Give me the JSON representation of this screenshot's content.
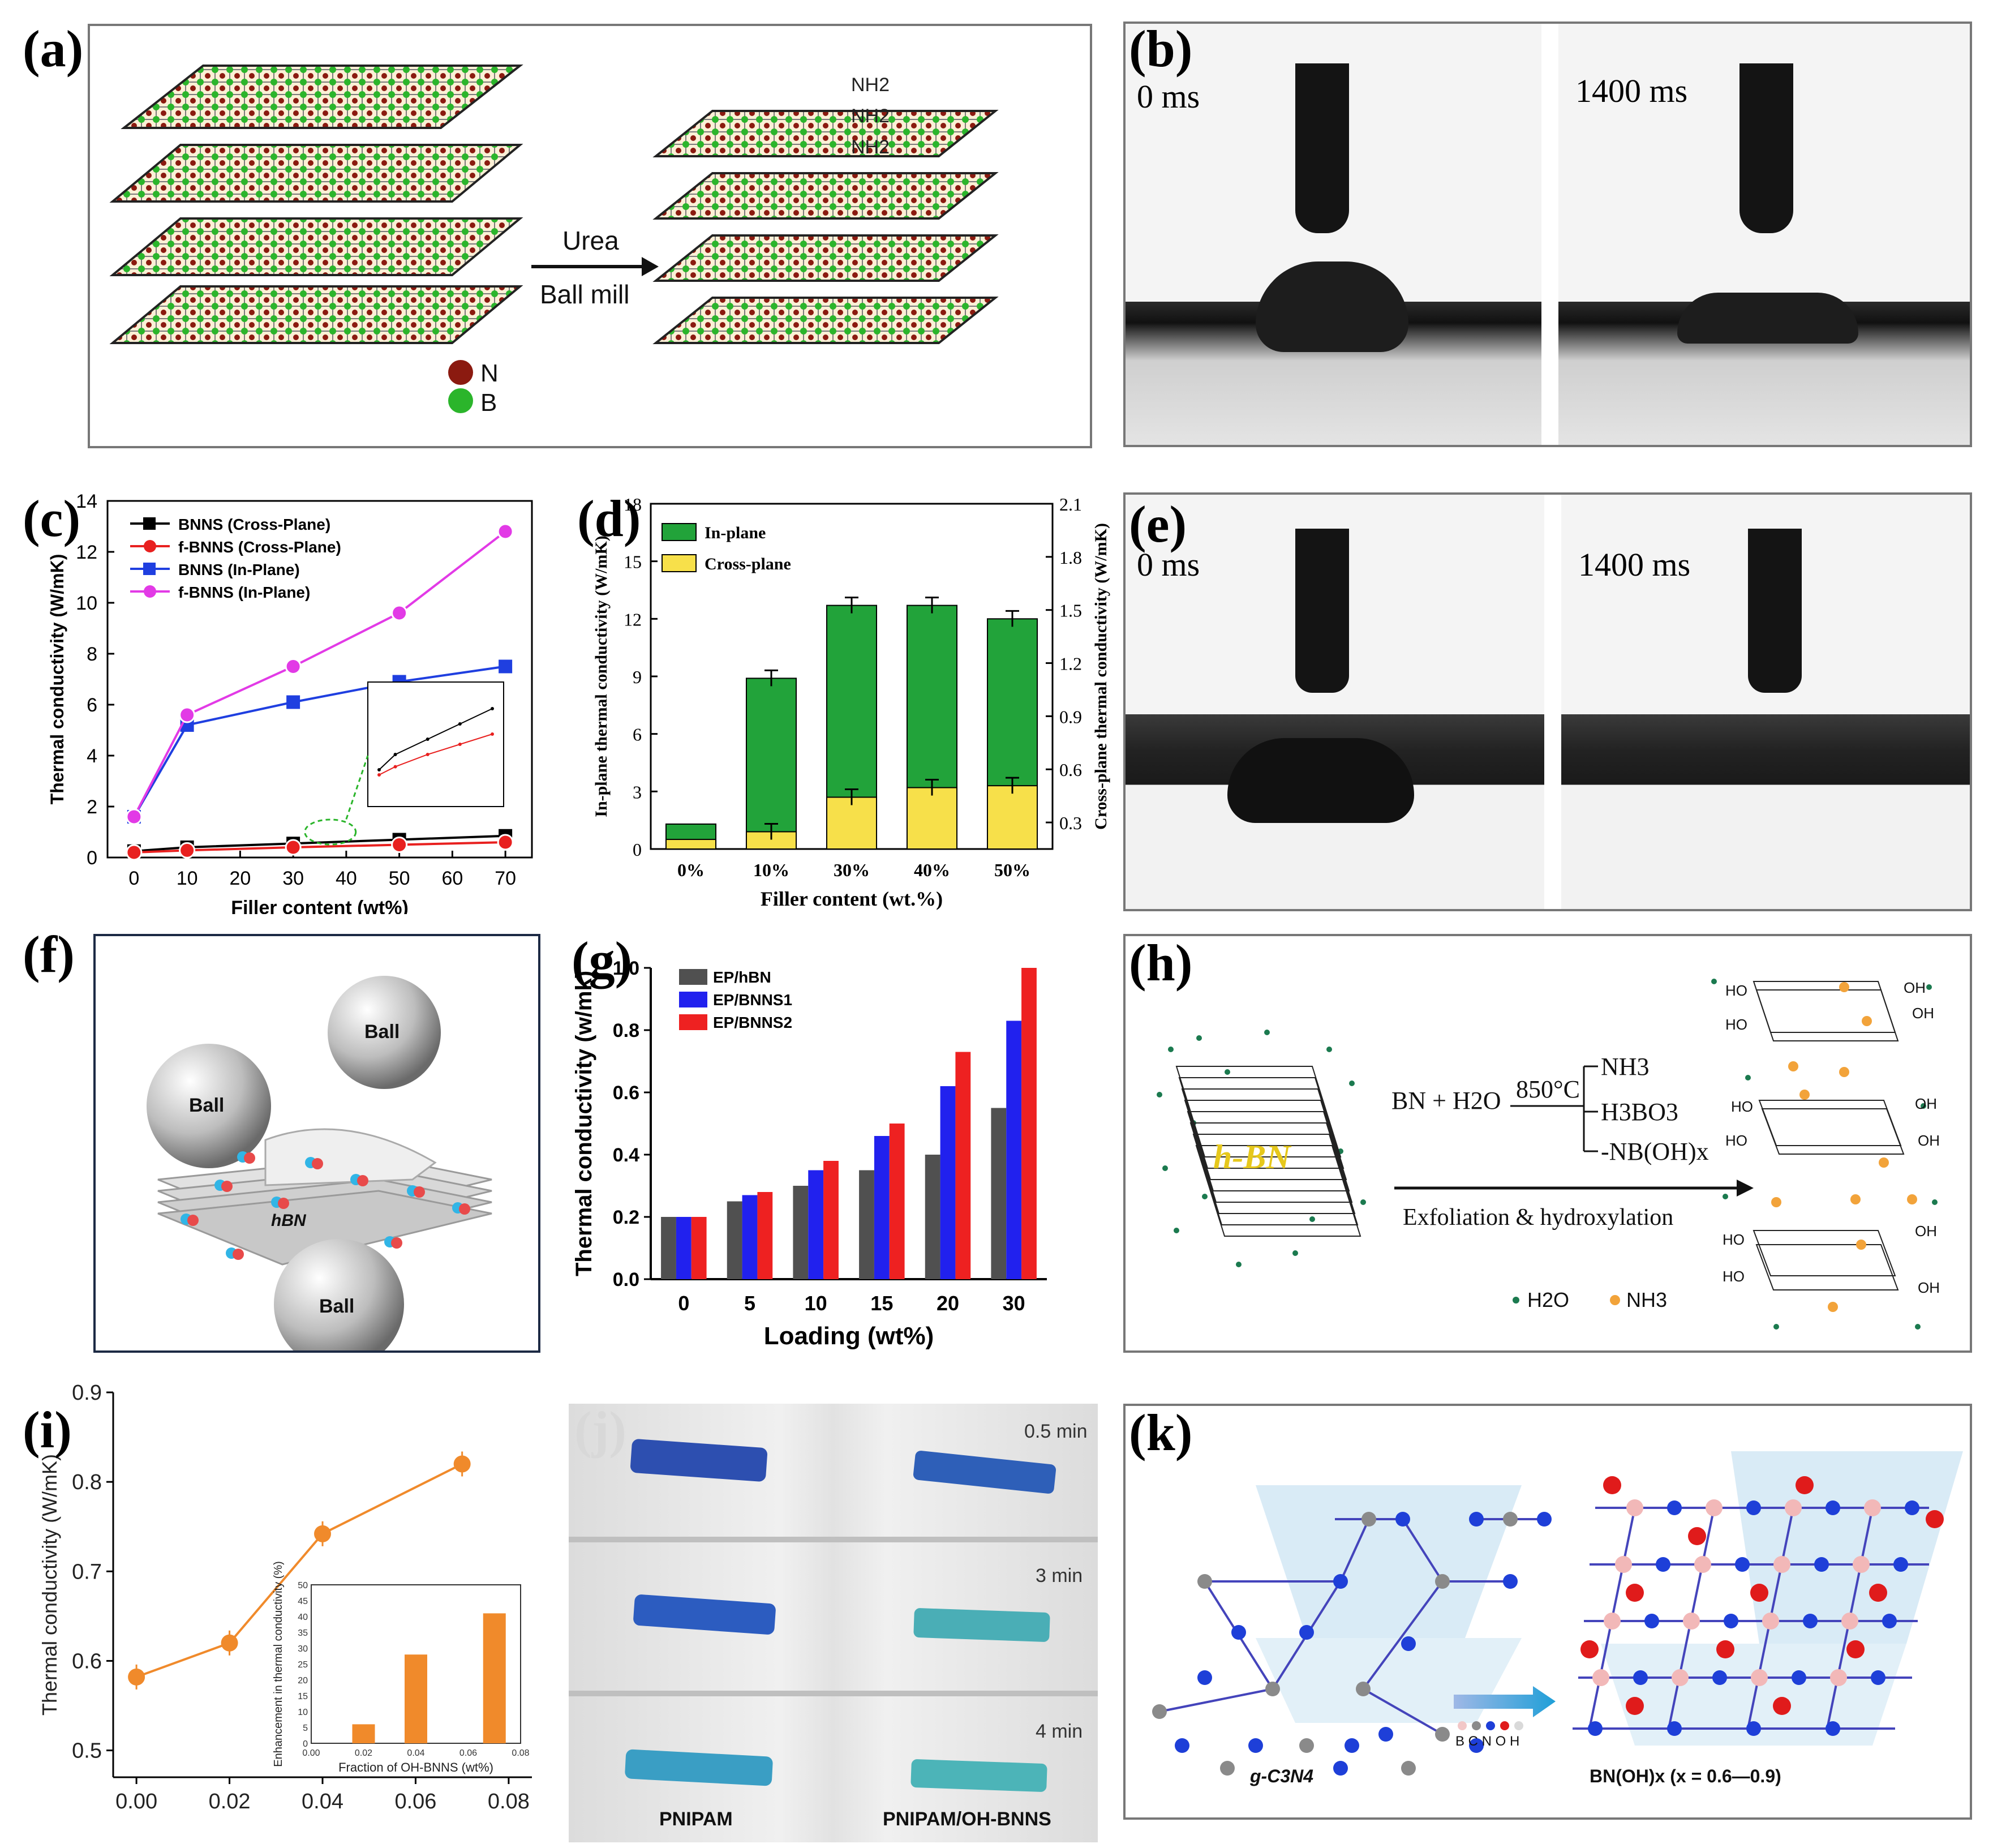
{
  "panels": {
    "a": {
      "label": "(a)",
      "arrow_top": "Urea",
      "arrow_bottom": "Ball mill",
      "legend": [
        {
          "symbol": "N",
          "color": "#8b1a10"
        },
        {
          "symbol": "B",
          "color": "#2bb52b"
        }
      ],
      "group": "NH2",
      "group_sub": "2"
    },
    "b": {
      "label": "(b)",
      "t0": "0 ms",
      "t1": "1400 ms"
    },
    "c": {
      "label": "(c)"
    },
    "d": {
      "label": "(d)"
    },
    "e": {
      "label": "(e)",
      "t0": "0 ms",
      "t1": "1400 ms"
    },
    "f": {
      "label": "(f)",
      "balls": [
        "Ball",
        "Ball",
        "Ball"
      ],
      "sheet": "hBN"
    },
    "g": {
      "label": "(g)"
    },
    "h": {
      "label": "(h)",
      "reactants": "BN + H2O",
      "temperature": "850°C",
      "products": [
        "NH3",
        "H3BO3",
        "-NB(OH)x"
      ],
      "arrow": "Exfoliation & hydroxylation",
      "crystal": "h-BN",
      "legend_water": "H2O",
      "legend_ammonia": "NH3",
      "oh": "OH",
      "ho": "HO"
    },
    "i": {
      "label": "(i)"
    },
    "j": {
      "label": "(j)",
      "times": [
        "0.5 min",
        "3 min",
        "4 min"
      ],
      "left": "PNIPAM",
      "right": "PNIPAM/OH-BNNS"
    },
    "k": {
      "label": "(k)",
      "left": "g-C3N4",
      "right": "BN(OH)x (x = 0.6—0.9)",
      "elements": "B C N O H"
    }
  },
  "chart_data": [
    {
      "id": "c",
      "type": "line",
      "title": "",
      "xlabel": "Filler content (wt%)",
      "ylabel": "Thermal conductivity (W/mK)",
      "x": [
        0,
        10,
        30,
        50,
        70
      ],
      "xlim": [
        -5,
        75
      ],
      "ylim": [
        0,
        14
      ],
      "xticks": [
        0,
        10,
        20,
        30,
        40,
        50,
        60,
        70
      ],
      "yticks": [
        0,
        2,
        4,
        6,
        8,
        10,
        12,
        14
      ],
      "series": [
        {
          "name": "BNNS  (Cross-Plane)",
          "color": "#000000",
          "marker": "square",
          "values": [
            0.25,
            0.4,
            0.55,
            0.7,
            0.85
          ]
        },
        {
          "name": "f-BNNS (Cross-Plane)",
          "color": "#e8201f",
          "marker": "circle",
          "values": [
            0.2,
            0.28,
            0.4,
            0.5,
            0.6
          ]
        },
        {
          "name": "BNNS  (In-Plane)",
          "color": "#1f3fe0",
          "marker": "square",
          "values": [
            1.6,
            5.2,
            6.1,
            6.9,
            7.5
          ]
        },
        {
          "name": "f-BNNS (In-Plane)",
          "color": "#e23ae6",
          "marker": "circle",
          "values": [
            1.6,
            5.6,
            7.5,
            9.6,
            12.8
          ]
        }
      ]
    },
    {
      "id": "d",
      "type": "bar",
      "xlabel": "Filler content (wt.%)",
      "ylabel": "In-plane thermal conductivity (W/mK)",
      "ylabel_right": "Cross-plane thermal conductivity (W/mK)",
      "categories": [
        "0%",
        "10%",
        "30%",
        "40%",
        "50%"
      ],
      "ylim": [
        0,
        18
      ],
      "yticks": [
        0,
        3,
        6,
        9,
        12,
        15,
        18
      ],
      "ylim_right": [
        0.15,
        2.1
      ],
      "yticks_right": [
        "0.3",
        "0.6",
        "0.9",
        "1.2",
        "1.5",
        "1.8",
        "2.1"
      ],
      "series": [
        {
          "name": "In-plane",
          "color": "#22a33a",
          "values": [
            1.3,
            8.9,
            12.7,
            12.7,
            12.0
          ]
        },
        {
          "name": "Cross-plane",
          "color": "#f7e04a",
          "values": [
            0.5,
            0.9,
            2.7,
            3.2,
            3.3
          ]
        }
      ]
    },
    {
      "id": "g",
      "type": "bar",
      "xlabel": "Loading (wt%)",
      "ylabel": "Thermal conductivity (w/mk)",
      "categories": [
        "0",
        "5",
        "10",
        "15",
        "20",
        "30"
      ],
      "ylim": [
        0,
        1.0
      ],
      "yticks": [
        "0.0",
        "0.2",
        "0.4",
        "0.6",
        "0.8",
        "1.0"
      ],
      "series": [
        {
          "name": "EP/hBN",
          "color": "#505050",
          "values": [
            0.2,
            0.25,
            0.3,
            0.35,
            0.4,
            0.55
          ]
        },
        {
          "name": "EP/BNNS1",
          "color": "#2121ee",
          "values": [
            0.2,
            0.27,
            0.35,
            0.46,
            0.62,
            0.83
          ]
        },
        {
          "name": "EP/BNNS2",
          "color": "#ee2121",
          "values": [
            0.2,
            0.28,
            0.38,
            0.5,
            0.73,
            1.0
          ]
        }
      ]
    },
    {
      "id": "i",
      "type": "line",
      "xlabel": "",
      "ylabel": "Thermal conductivity (W/mK)",
      "x": [
        0.0,
        0.02,
        0.04,
        0.07
      ],
      "xlim": [
        -0.005,
        0.085
      ],
      "ylim": [
        0.47,
        0.9
      ],
      "xticks": [
        "0.00",
        "0.02",
        "0.04",
        "0.06",
        "0.08"
      ],
      "yticks": [
        "0.5",
        "0.6",
        "0.7",
        "0.8",
        "0.9"
      ],
      "series": [
        {
          "name": "OH-BNNS",
          "color": "#f08a2b",
          "values": [
            0.582,
            0.62,
            0.742,
            0.82
          ]
        }
      ],
      "inset": {
        "type": "bar",
        "xlabel": "Fraction of OH-BNNS (wt%)",
        "ylabel": "Enhancement in thermal conductivity (%)",
        "categories": [
          0.02,
          0.04,
          0.07
        ],
        "values": [
          6,
          28,
          41
        ],
        "ylim": [
          0,
          50
        ],
        "yticks": [
          "0",
          "5",
          "10",
          "15",
          "20",
          "25",
          "30",
          "35",
          "40",
          "45",
          "50"
        ],
        "xticks": [
          "0.00",
          "0.02",
          "0.04",
          "0.06",
          "0.08"
        ],
        "color": "#f08a2b"
      }
    }
  ]
}
